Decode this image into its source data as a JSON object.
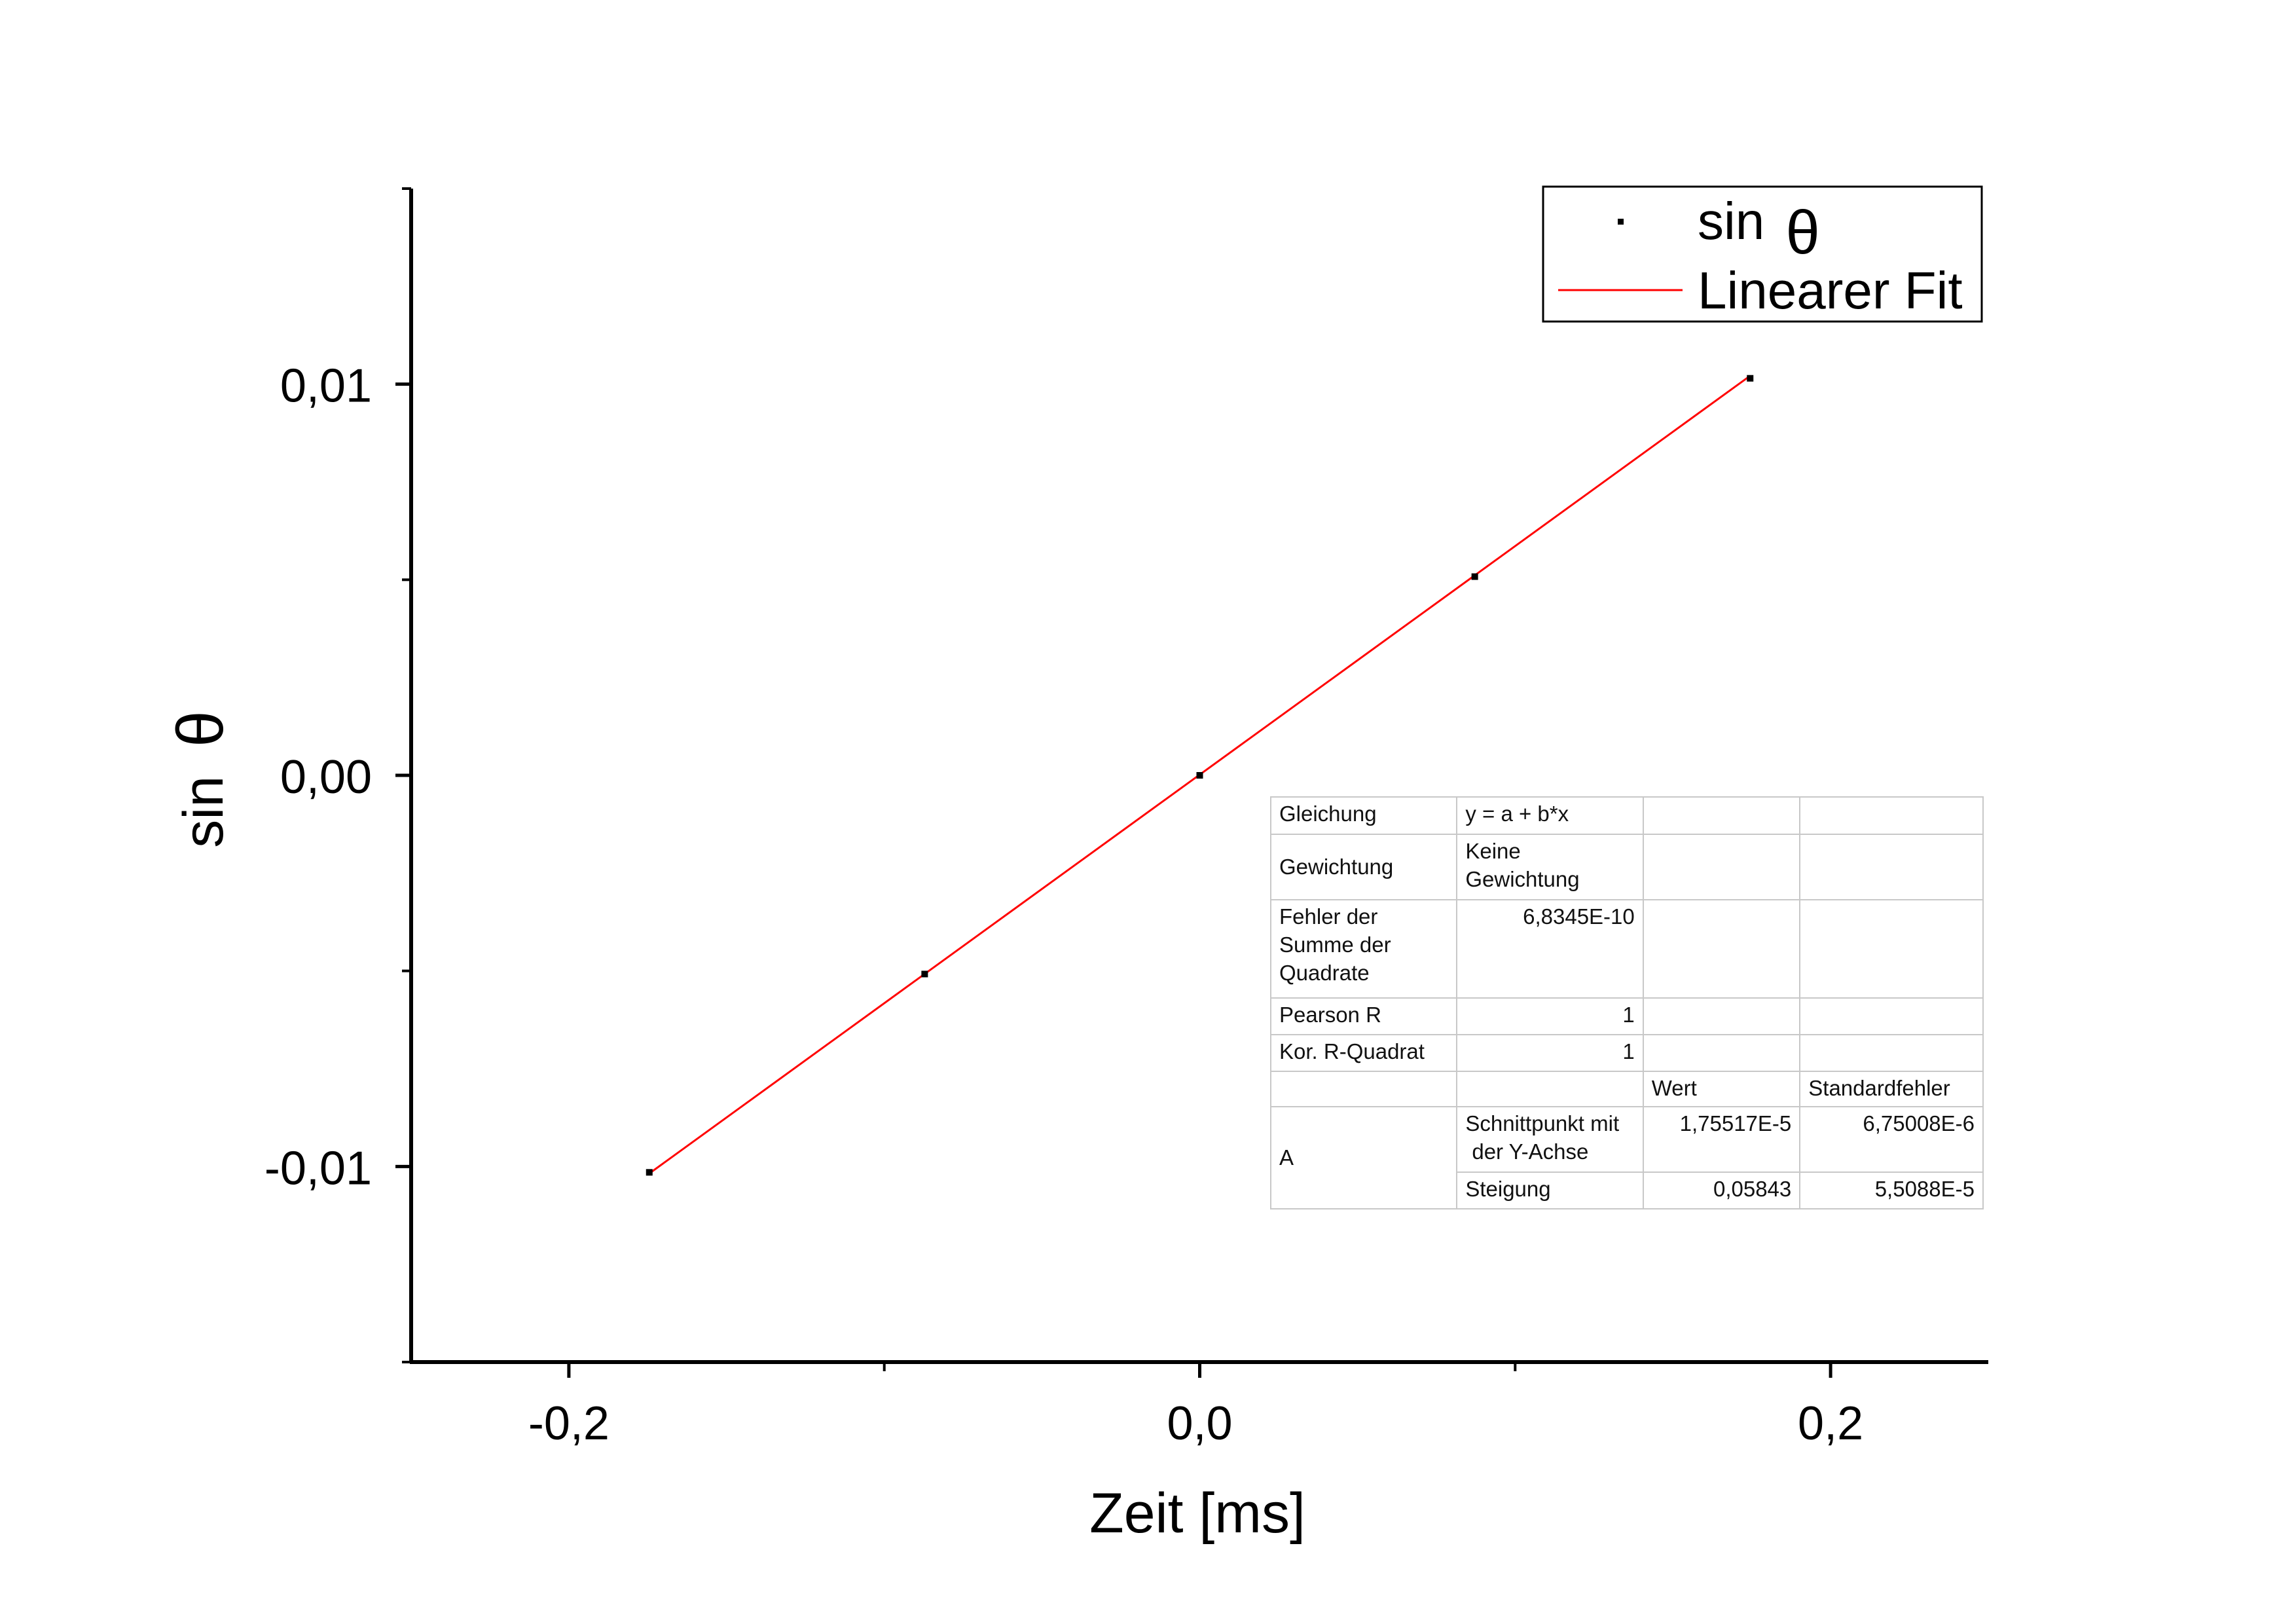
{
  "chart_data": {
    "type": "scatter",
    "xlabel": "Zeit [ms]",
    "ylabel_text": "sin",
    "ylabel_symbol": "θ",
    "xlim": [
      -0.25,
      0.25
    ],
    "ylim": [
      -0.015,
      0.015
    ],
    "x_major_ticks": [
      -0.2,
      0.0,
      0.2
    ],
    "x_minor_ticks": [
      -0.1,
      0.1
    ],
    "x_tick_labels": [
      "-0,2",
      "0,0",
      "0,2"
    ],
    "y_major_ticks": [
      -0.01,
      0.0,
      0.01
    ],
    "y_minor_ticks": [
      -0.005,
      0.005
    ],
    "y_tick_labels": [
      "-0,01",
      "0,00",
      "0,01"
    ],
    "series": [
      {
        "name": "sin θ",
        "kind": "points",
        "color": "#000000",
        "x": [
          -0.1745,
          -0.0872,
          0.0,
          0.0872,
          0.1745
        ],
        "y": [
          -0.01015,
          -0.00508,
          0.0,
          0.00508,
          0.01015
        ]
      },
      {
        "name": "Linearer Fit",
        "kind": "line",
        "color": "#ff0000",
        "intercept": 1.75517e-05,
        "slope": 0.05843,
        "x_range": [
          -0.1745,
          0.1745
        ]
      }
    ],
    "legend": {
      "placement": "top-right",
      "entries": [
        {
          "label_text": "sin",
          "label_symbol": "θ",
          "marker": "point",
          "color": "#000000"
        },
        {
          "label": "Linearer Fit",
          "marker": "line",
          "color": "#ff0000"
        }
      ]
    },
    "grid": false
  },
  "fit_table": {
    "gleichung_label": "Gleichung",
    "gleichung_value": "y = a + b*x",
    "gewichtung_label": "Gewichtung",
    "gewichtung_value": "Keine Gewichtung",
    "fehler_label_1": "Fehler der",
    "fehler_label_2": "Summe der",
    "fehler_label_3": "Quadrate",
    "fehler_value": "6,8345E-10",
    "pearson_label": "Pearson R",
    "pearson_value": "1",
    "kor_label": "Kor. R-Quadrat",
    "kor_value": "1",
    "wert_header": "Wert",
    "std_header": "Standardfehler",
    "a_label": "A",
    "schnitt_label_1": "Schnittpunkt mit",
    "schnitt_label_2": "der Y-Achse",
    "schnitt_wert": "1,75517E-5",
    "schnitt_std": "6,75008E-6",
    "steigung_label": "Steigung",
    "steigung_wert": "0,05843",
    "steigung_std": "5,5088E-5"
  }
}
